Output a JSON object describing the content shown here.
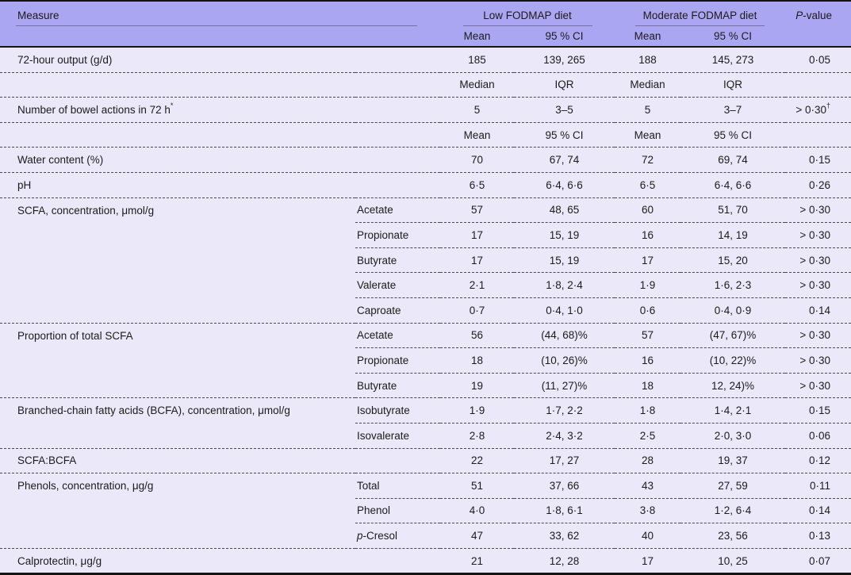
{
  "colors": {
    "header_bg": "#aba6f2",
    "body_bg": "#ebe9f9",
    "header_rule": "#76719f",
    "heavy_border": "#141414",
    "dashed_separator": "#4a4a4a",
    "text": "#1b1b1b"
  },
  "table": {
    "header": {
      "measure": "Measure",
      "group_low": "Low FODMAP diet",
      "group_moderate": "Moderate FODMAP diet",
      "p_italic": "P",
      "p_rest": "-value",
      "sub": [
        "Mean",
        "95 % CI",
        "Mean",
        "95 % CI"
      ]
    },
    "rows": [
      {
        "measure": "72-hour output (g/d)",
        "sub": "",
        "c": [
          "185",
          "139, 265",
          "188",
          "145, 273"
        ],
        "p": "0·05",
        "sep": "none"
      },
      {
        "measure": "",
        "sub": "",
        "c": [
          "Median",
          "IQR",
          "Median",
          "IQR"
        ],
        "p": "",
        "sep": "full",
        "subheader": true
      },
      {
        "measure": "Number of bowel actions in 72 h",
        "measure_sup": "*",
        "sub": "",
        "c": [
          "5",
          "3–5",
          "5",
          "3–7"
        ],
        "p": "> 0·30",
        "p_sup": "†",
        "sep": "full"
      },
      {
        "measure": "",
        "sub": "",
        "c": [
          "Mean",
          "95 % CI",
          "Mean",
          "95 % CI"
        ],
        "p": "",
        "sep": "full",
        "subheader": true
      },
      {
        "measure": "Water content (%)",
        "sub": "",
        "c": [
          "70",
          "67, 74",
          "72",
          "69, 74"
        ],
        "p": "0·15",
        "sep": "full"
      },
      {
        "measure": "pH",
        "sub": "",
        "c": [
          "6·5",
          "6·4, 6·6",
          "6·5",
          "6·4, 6·6"
        ],
        "p": "0·26",
        "sep": "full"
      },
      {
        "measure": "SCFA, concentration, μmol/g",
        "sub": "Acetate",
        "c": [
          "57",
          "48, 65",
          "60",
          "51, 70"
        ],
        "p": "> 0·30",
        "sep": "full"
      },
      {
        "measure": "",
        "sub": "Propionate",
        "c": [
          "17",
          "15, 19",
          "16",
          "14, 19"
        ],
        "p": "> 0·30",
        "sep": "part"
      },
      {
        "measure": "",
        "sub": "Butyrate",
        "c": [
          "17",
          "15, 19",
          "17",
          "15, 20"
        ],
        "p": "> 0·30",
        "sep": "part"
      },
      {
        "measure": "",
        "sub": "Valerate",
        "c": [
          "2·1",
          "1·8, 2·4",
          "1·9",
          "1·6, 2·3"
        ],
        "p": "> 0·30",
        "sep": "part"
      },
      {
        "measure": "",
        "sub": "Caproate",
        "c": [
          "0·7",
          "0·4, 1·0",
          "0·6",
          "0·4, 0·9"
        ],
        "p": "0·14",
        "sep": "part"
      },
      {
        "measure": "Proportion of total SCFA",
        "sub": "Acetate",
        "c": [
          "56",
          "(44, 68)%",
          "57",
          "(47, 67)%"
        ],
        "p": "> 0·30",
        "sep": "full"
      },
      {
        "measure": "",
        "sub": "Propionate",
        "c": [
          "18",
          "(10, 26)%",
          "16",
          "(10, 22)%"
        ],
        "p": "> 0·30",
        "sep": "part"
      },
      {
        "measure": "",
        "sub": "Butyrate",
        "c": [
          "19",
          "(11, 27)%",
          "18",
          "12, 24)%"
        ],
        "p": "> 0·30",
        "sep": "part"
      },
      {
        "measure": "Branched-chain fatty acids (BCFA), concentration, μmol/g",
        "sub": "Isobutyrate",
        "c": [
          "1·9",
          "1·7, 2·2",
          "1·8",
          "1·4, 2·1"
        ],
        "p": "0·15",
        "sep": "full"
      },
      {
        "measure": "",
        "sub": "Isovalerate",
        "c": [
          "2·8",
          "2·4, 3·2",
          "2·5",
          "2·0, 3·0"
        ],
        "p": "0·06",
        "sep": "part"
      },
      {
        "measure": "SCFA:BCFA",
        "sub": "",
        "c": [
          "22",
          "17, 27",
          "28",
          "19, 37"
        ],
        "p": "0·12",
        "sep": "full"
      },
      {
        "measure": "Phenols, concentration, μg/g",
        "sub": "Total",
        "c": [
          "51",
          "37, 66",
          "43",
          "27, 59"
        ],
        "p": "0·11",
        "sep": "full"
      },
      {
        "measure": "",
        "sub": "Phenol",
        "c": [
          "4·0",
          "1·8, 6·1",
          "3·8",
          "1·2, 6·4"
        ],
        "p": "0·14",
        "sep": "part"
      },
      {
        "measure": "",
        "sub_italic": "p",
        "sub": "-Cresol",
        "c": [
          "47",
          "33, 62",
          "40",
          "23, 56"
        ],
        "p": "0·13",
        "sep": "part"
      },
      {
        "measure": "Calprotectin, μg/g",
        "sub": "",
        "c": [
          "21",
          "12, 28",
          "17",
          "10, 25"
        ],
        "p": "0·07",
        "sep": "full"
      }
    ]
  }
}
